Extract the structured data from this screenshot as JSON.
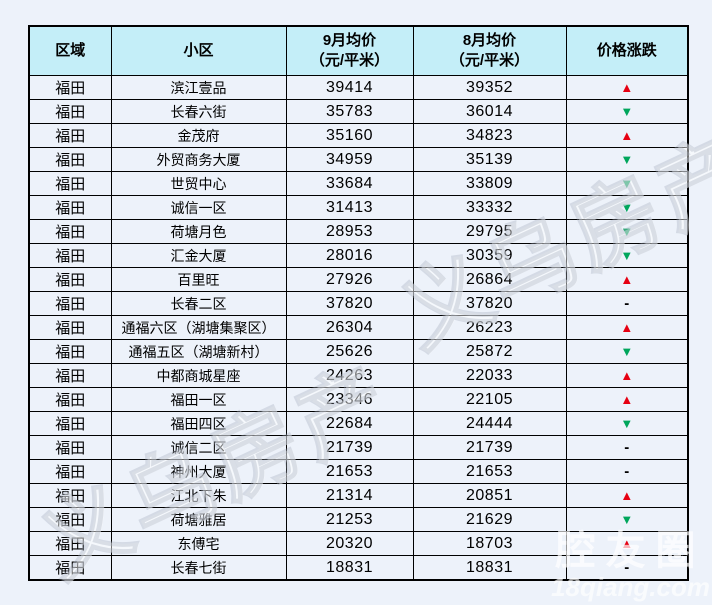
{
  "page": {
    "background": "#edf2fa",
    "header_bg": "#c4eef8",
    "up_color": "#e60012",
    "down_color": "#00a65c"
  },
  "chart_data": {
    "type": "table",
    "title": "",
    "columns": [
      "区域",
      "小区",
      "9月均价（元/平米）",
      "8月均价（元/平米）",
      "价格涨跌"
    ],
    "header_lines": [
      [
        "区域"
      ],
      [
        "小区"
      ],
      [
        "9月均价",
        "（元/平米）"
      ],
      [
        "8月均价",
        "（元/平米）"
      ],
      [
        "价格涨跌"
      ]
    ],
    "trend_symbols": {
      "up": "▲",
      "down": "▼",
      "flat": "-"
    },
    "rows": [
      {
        "region": "福田",
        "community": "滨江壹品",
        "sep_price": 39414,
        "aug_price": 39352,
        "trend": "up"
      },
      {
        "region": "福田",
        "community": "长春六街",
        "sep_price": 35783,
        "aug_price": 36014,
        "trend": "down"
      },
      {
        "region": "福田",
        "community": "金茂府",
        "sep_price": 35160,
        "aug_price": 34823,
        "trend": "up"
      },
      {
        "region": "福田",
        "community": "外贸商务大厦",
        "sep_price": 34959,
        "aug_price": 35139,
        "trend": "down"
      },
      {
        "region": "福田",
        "community": "世贸中心",
        "sep_price": 33684,
        "aug_price": 33809,
        "trend": "down"
      },
      {
        "region": "福田",
        "community": "诚信一区",
        "sep_price": 31413,
        "aug_price": 33332,
        "trend": "down"
      },
      {
        "region": "福田",
        "community": "荷塘月色",
        "sep_price": 28953,
        "aug_price": 29795,
        "trend": "down"
      },
      {
        "region": "福田",
        "community": "汇金大厦",
        "sep_price": 28016,
        "aug_price": 30359,
        "trend": "down"
      },
      {
        "region": "福田",
        "community": "百里旺",
        "sep_price": 27926,
        "aug_price": 26864,
        "trend": "up"
      },
      {
        "region": "福田",
        "community": "长春二区",
        "sep_price": 37820,
        "aug_price": 37820,
        "trend": "flat"
      },
      {
        "region": "福田",
        "community": "通福六区（湖塘集聚区）",
        "sep_price": 26304,
        "aug_price": 26223,
        "trend": "up"
      },
      {
        "region": "福田",
        "community": "通福五区（湖塘新村）",
        "sep_price": 25626,
        "aug_price": 25872,
        "trend": "down"
      },
      {
        "region": "福田",
        "community": "中都商城星座",
        "sep_price": 24263,
        "aug_price": 22033,
        "trend": "up"
      },
      {
        "region": "福田",
        "community": "福田一区",
        "sep_price": 23346,
        "aug_price": 22105,
        "trend": "up"
      },
      {
        "region": "福田",
        "community": "福田四区",
        "sep_price": 22684,
        "aug_price": 24444,
        "trend": "down"
      },
      {
        "region": "福田",
        "community": "诚信二区",
        "sep_price": 21739,
        "aug_price": 21739,
        "trend": "flat"
      },
      {
        "region": "福田",
        "community": "神州大厦",
        "sep_price": 21653,
        "aug_price": 21653,
        "trend": "flat"
      },
      {
        "region": "福田",
        "community": "江北下朱",
        "sep_price": 21314,
        "aug_price": 20851,
        "trend": "up"
      },
      {
        "region": "福田",
        "community": "荷塘雅居",
        "sep_price": 21253,
        "aug_price": 21629,
        "trend": "down"
      },
      {
        "region": "福田",
        "community": "东傅宅",
        "sep_price": 20320,
        "aug_price": 18703,
        "trend": "up"
      },
      {
        "region": "福田",
        "community": "长春七街",
        "sep_price": 18831,
        "aug_price": 18831,
        "trend": "flat"
      }
    ]
  },
  "watermarks": {
    "diagonal_text": "义乌房产",
    "site_name": "腔友圈",
    "site_url": "18qiang.com"
  }
}
